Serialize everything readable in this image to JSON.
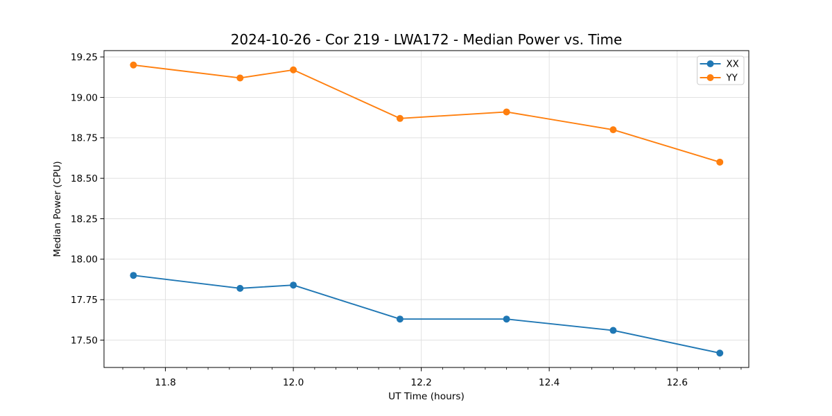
{
  "chart_data": {
    "type": "line",
    "title": "2024-10-26 - Cor 219 - LWA172 - Median Power vs. Time",
    "xlabel": "UT Time (hours)",
    "ylabel": "Median Power (CPU)",
    "x": [
      11.75,
      11.9167,
      12.0,
      12.1667,
      12.3333,
      12.5,
      12.6667
    ],
    "series": [
      {
        "name": "XX",
        "color": "#1f77b4",
        "marker": "circle",
        "values": [
          17.9,
          17.82,
          17.84,
          17.63,
          17.63,
          17.56,
          17.42
        ]
      },
      {
        "name": "YY",
        "color": "#ff7f0e",
        "marker": "circle",
        "values": [
          19.2,
          19.12,
          19.17,
          18.87,
          18.91,
          18.8,
          18.6
        ]
      }
    ],
    "xlim": [
      11.704,
      12.712
    ],
    "ylim": [
      17.331,
      19.289
    ],
    "xticks": [
      11.8,
      12.0,
      12.2,
      12.4,
      12.6
    ],
    "xtick_labels": [
      "11.8",
      "12.0",
      "12.2",
      "12.4",
      "12.6"
    ],
    "yticks": [
      17.5,
      17.75,
      18.0,
      18.25,
      18.5,
      18.75,
      19.0,
      19.25
    ],
    "ytick_labels": [
      "17.50",
      "17.75",
      "18.00",
      "18.25",
      "18.50",
      "18.75",
      "19.00",
      "19.25"
    ],
    "minor_xtick_step": 0.0333333,
    "grid": true,
    "legend": {
      "position": "upper-right",
      "entries": [
        "XX",
        "YY"
      ]
    },
    "colors": {
      "background": "#ffffff",
      "grid": "#dedede",
      "spine": "#000000",
      "tick": "#000000",
      "text": "#000000",
      "legend_edge": "#cccccc",
      "legend_fill": "#ffffff"
    }
  }
}
